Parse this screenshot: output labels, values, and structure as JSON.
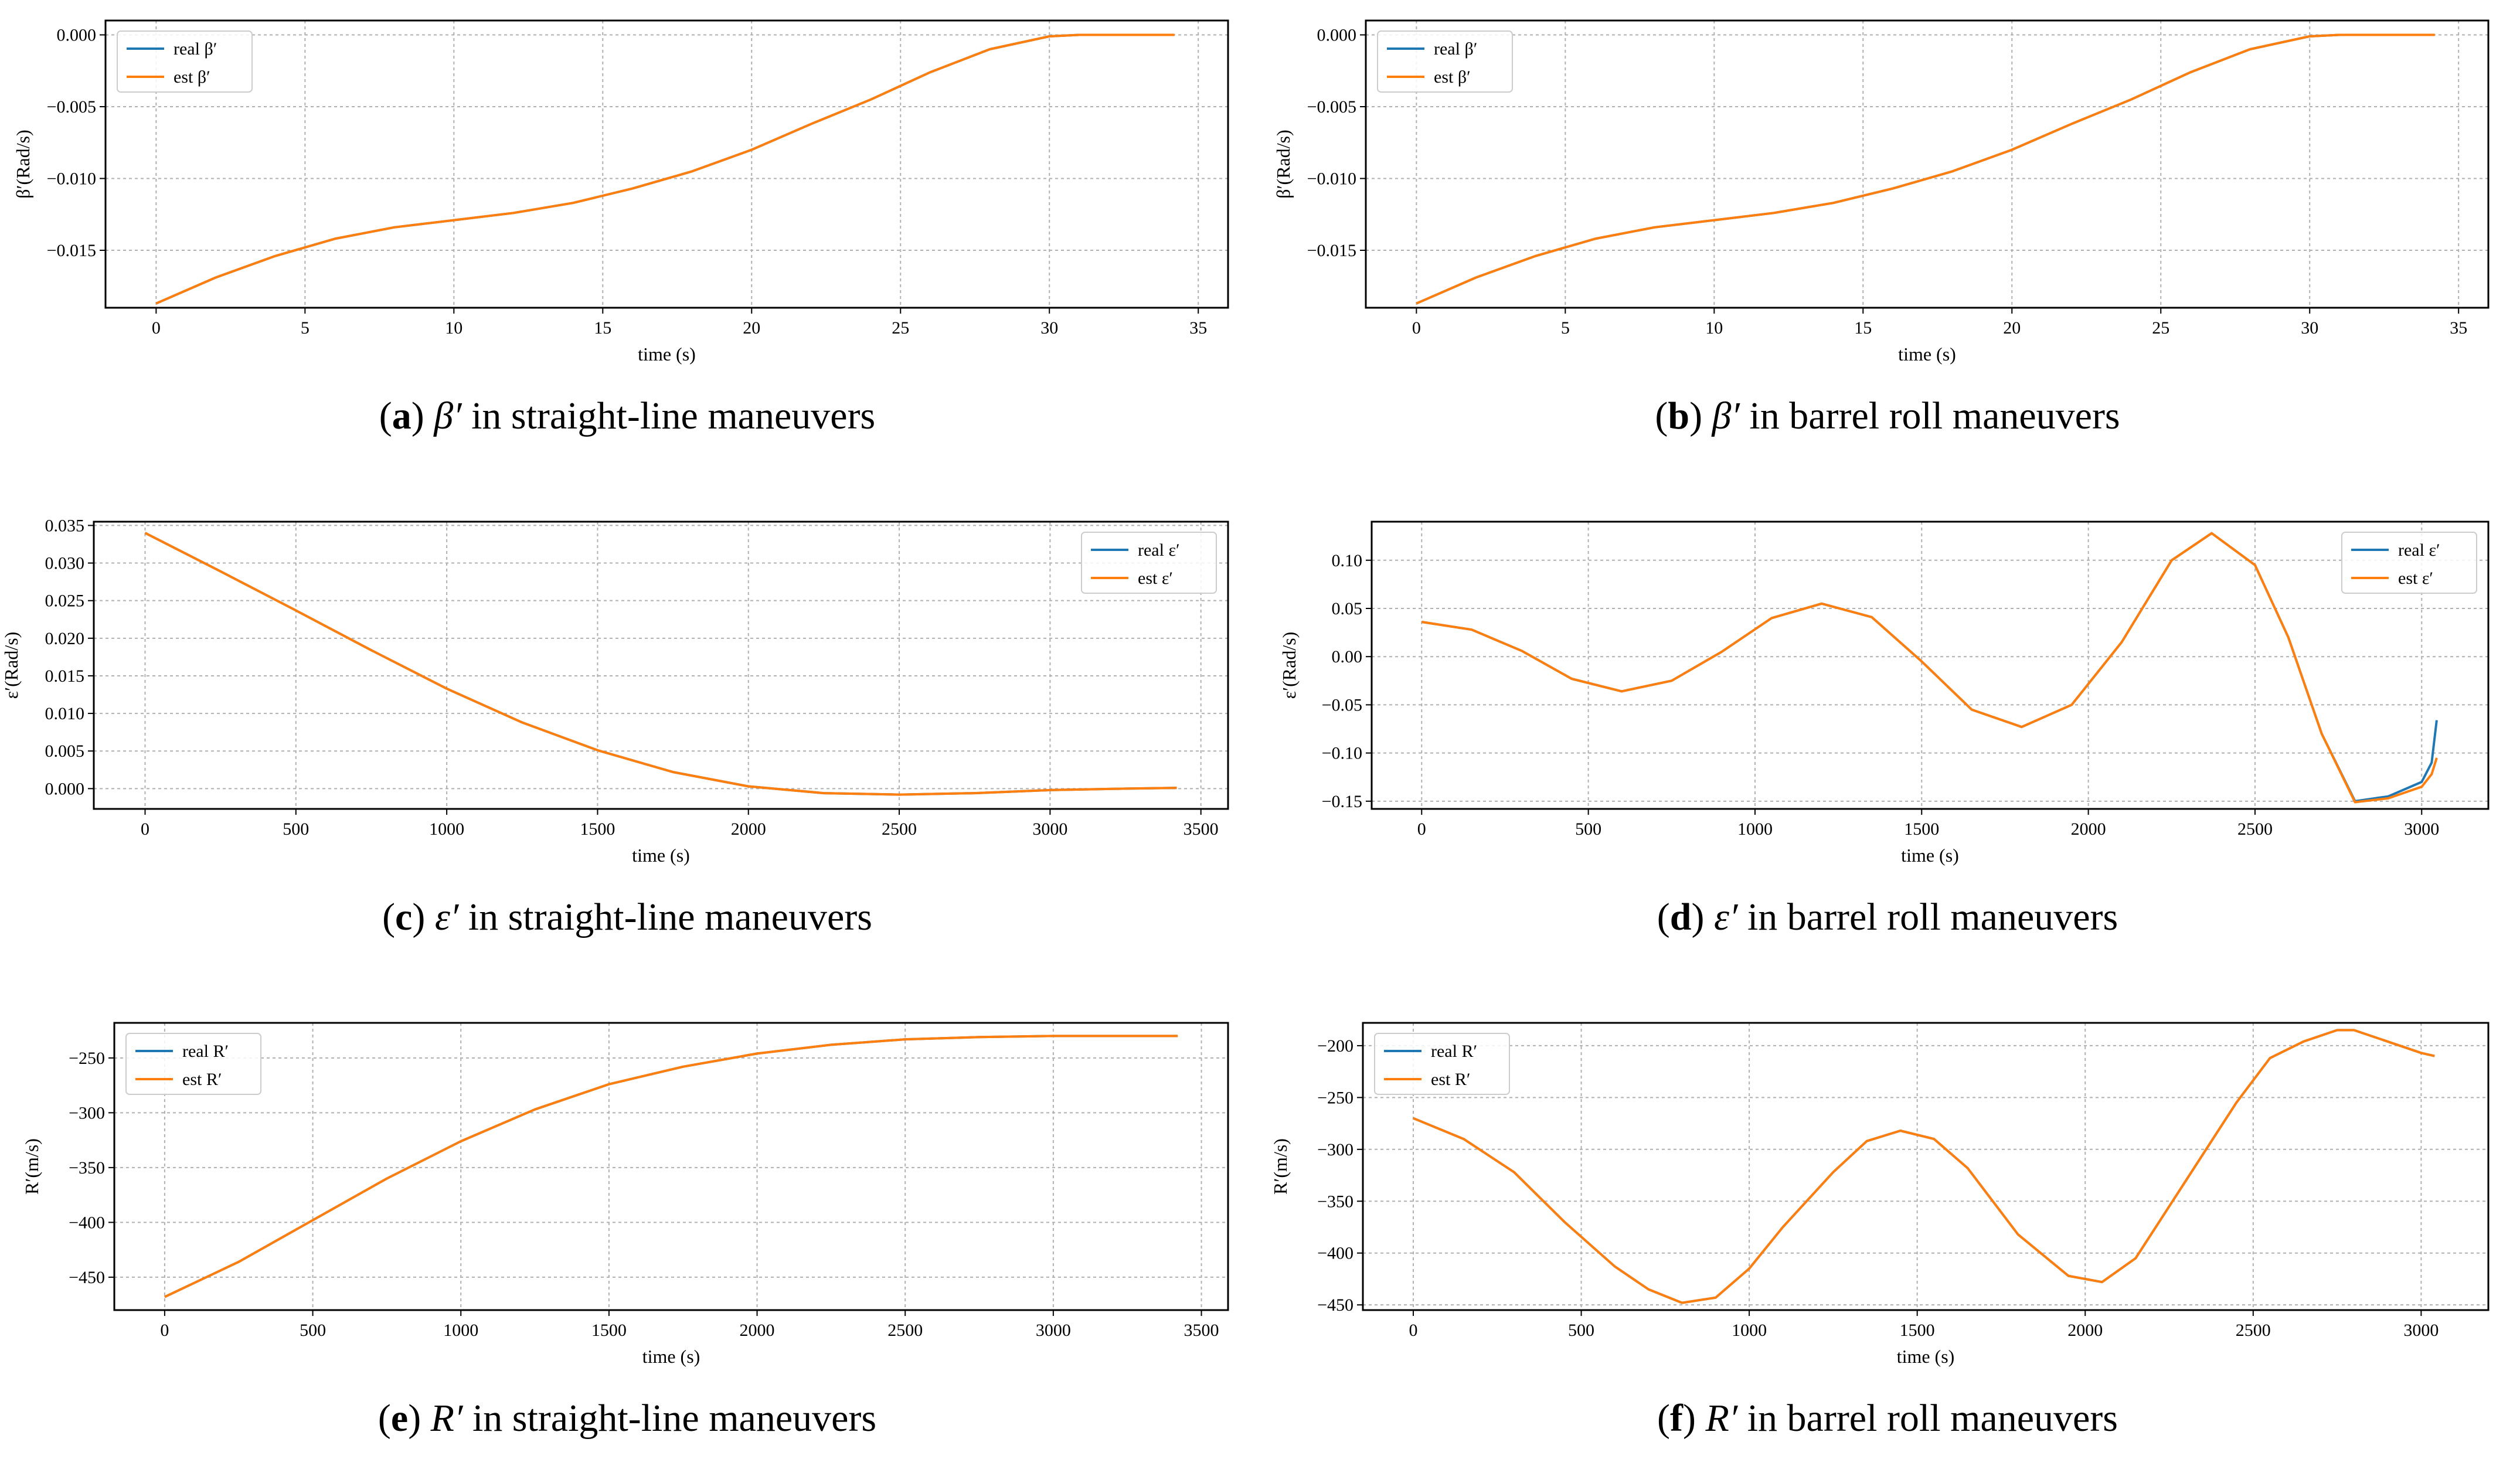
{
  "colors": {
    "real": "#1f77b4",
    "est": "#ff7f0e",
    "grid": "#b0b0b0",
    "axis": "#000000",
    "legend_border": "#cccccc"
  },
  "chart_data": [
    {
      "id": "a",
      "type": "line",
      "caption": {
        "letter": "a",
        "symbol": "β′",
        "text": "in straight-line maneuvers"
      },
      "xlabel": "time (s)",
      "ylabel": "β′(Rad/s)",
      "xlim": [
        -1.7,
        36
      ],
      "ylim": [
        -0.019,
        0.001
      ],
      "xticks": [
        0,
        5,
        10,
        15,
        20,
        25,
        30,
        35
      ],
      "yticks": [
        -0.015,
        -0.01,
        -0.005,
        0.0
      ],
      "ytick_labels": [
        "−0.015",
        "−0.010",
        "−0.005",
        "0.000"
      ],
      "legend": {
        "position": "upper-left",
        "entries": [
          "real β′",
          "est β′"
        ]
      },
      "series": [
        {
          "name": "real β′",
          "color_key": "real",
          "x": [
            0,
            2,
            4,
            6,
            8,
            10,
            12,
            14,
            16,
            18,
            20,
            22,
            24,
            26,
            28,
            30,
            31,
            32,
            34.2
          ],
          "y": [
            -0.0187,
            -0.0169,
            -0.0154,
            -0.0142,
            -0.0134,
            -0.0129,
            -0.0124,
            -0.0117,
            -0.0107,
            -0.0095,
            -0.008,
            -0.0062,
            -0.0045,
            -0.0026,
            -0.001,
            -0.0001,
            0.0,
            0.0,
            0.0
          ]
        },
        {
          "name": "est β′",
          "color_key": "est",
          "x": [
            0,
            2,
            4,
            6,
            8,
            10,
            12,
            14,
            16,
            18,
            20,
            22,
            24,
            26,
            28,
            30,
            31,
            32,
            34.2
          ],
          "y": [
            -0.0187,
            -0.0169,
            -0.0154,
            -0.0142,
            -0.0134,
            -0.0129,
            -0.0124,
            -0.0117,
            -0.0107,
            -0.0095,
            -0.008,
            -0.0062,
            -0.0045,
            -0.0026,
            -0.001,
            -0.0001,
            0.0,
            0.0,
            0.0
          ]
        }
      ]
    },
    {
      "id": "b",
      "type": "line",
      "caption": {
        "letter": "b",
        "symbol": "β′",
        "text": "in barrel roll maneuvers"
      },
      "xlabel": "time (s)",
      "ylabel": "β′(Rad/s)",
      "xlim": [
        -1.7,
        36
      ],
      "ylim": [
        -0.019,
        0.001
      ],
      "xticks": [
        0,
        5,
        10,
        15,
        20,
        25,
        30,
        35
      ],
      "yticks": [
        -0.015,
        -0.01,
        -0.005,
        0.0
      ],
      "ytick_labels": [
        "−0.015",
        "−0.010",
        "−0.005",
        "0.000"
      ],
      "legend": {
        "position": "upper-left",
        "entries": [
          "real β′",
          "est β′"
        ]
      },
      "series": [
        {
          "name": "real β′",
          "color_key": "real",
          "x": [
            0,
            2,
            4,
            6,
            8,
            10,
            12,
            14,
            16,
            18,
            20,
            22,
            24,
            26,
            28,
            30,
            31,
            32,
            34.2
          ],
          "y": [
            -0.0187,
            -0.0169,
            -0.0154,
            -0.0142,
            -0.0134,
            -0.0129,
            -0.0124,
            -0.0117,
            -0.0107,
            -0.0095,
            -0.008,
            -0.0062,
            -0.0045,
            -0.0026,
            -0.001,
            -0.0001,
            0.0,
            0.0,
            0.0
          ]
        },
        {
          "name": "est β′",
          "color_key": "est",
          "x": [
            0,
            2,
            4,
            6,
            8,
            10,
            12,
            14,
            16,
            18,
            20,
            22,
            24,
            26,
            28,
            30,
            31,
            32,
            34.2
          ],
          "y": [
            -0.0187,
            -0.0169,
            -0.0154,
            -0.0142,
            -0.0134,
            -0.0129,
            -0.0124,
            -0.0117,
            -0.0107,
            -0.0095,
            -0.008,
            -0.0062,
            -0.0045,
            -0.0026,
            -0.001,
            -0.0001,
            0.0,
            0.0,
            0.0
          ]
        }
      ]
    },
    {
      "id": "c",
      "type": "line",
      "caption": {
        "letter": "c",
        "symbol": "ε′",
        "text": "in straight-line maneuvers"
      },
      "xlabel": "time (s)",
      "ylabel": "ε′(Rad/s)",
      "xlim": [
        -170,
        3590
      ],
      "ylim": [
        -0.0027,
        0.0355
      ],
      "xticks": [
        0,
        500,
        1000,
        1500,
        2000,
        2500,
        3000,
        3500
      ],
      "yticks": [
        0.0,
        0.005,
        0.01,
        0.015,
        0.02,
        0.025,
        0.03,
        0.035
      ],
      "ytick_labels": [
        "0.000",
        "0.005",
        "0.010",
        "0.015",
        "0.020",
        "0.025",
        "0.030",
        "0.035"
      ],
      "legend": {
        "position": "upper-right",
        "entries": [
          "real ε′",
          "est ε′"
        ]
      },
      "series": [
        {
          "name": "real ε′",
          "color_key": "real",
          "x": [
            0,
            250,
            500,
            750,
            1000,
            1250,
            1500,
            1750,
            2000,
            2250,
            2500,
            2750,
            3000,
            3250,
            3420
          ],
          "y": [
            0.034,
            0.0289,
            0.0237,
            0.0184,
            0.0133,
            0.0088,
            0.0051,
            0.0022,
            0.0003,
            -0.0006,
            -0.0008,
            -0.0006,
            -0.0002,
            0.0,
            0.0001
          ]
        },
        {
          "name": "est ε′",
          "color_key": "est",
          "x": [
            0,
            250,
            500,
            750,
            1000,
            1250,
            1500,
            1750,
            2000,
            2250,
            2500,
            2750,
            3000,
            3250,
            3420
          ],
          "y": [
            0.034,
            0.0289,
            0.0237,
            0.0184,
            0.0133,
            0.0088,
            0.0051,
            0.0022,
            0.0003,
            -0.0006,
            -0.0008,
            -0.0006,
            -0.0002,
            0.0,
            0.0001
          ]
        }
      ]
    },
    {
      "id": "d",
      "type": "line",
      "caption": {
        "letter": "d",
        "symbol": "ε′",
        "text": "in barrel roll maneuvers"
      },
      "xlabel": "time (s)",
      "ylabel": "ε′(Rad/s)",
      "xlim": [
        -150,
        3200
      ],
      "ylim": [
        -0.158,
        0.14
      ],
      "xticks": [
        0,
        500,
        1000,
        1500,
        2000,
        2500,
        3000
      ],
      "yticks": [
        -0.15,
        -0.1,
        -0.05,
        0.0,
        0.05,
        0.1
      ],
      "ytick_labels": [
        "−0.15",
        "−0.10",
        "−0.05",
        "0.00",
        "0.05",
        "0.10"
      ],
      "legend": {
        "position": "upper-right",
        "entries": [
          "real ε′",
          "est ε′"
        ]
      },
      "series": [
        {
          "name": "real ε′",
          "color_key": "real",
          "x": [
            0,
            150,
            300,
            450,
            600,
            750,
            900,
            1050,
            1200,
            1350,
            1500,
            1650,
            1800,
            1950,
            2100,
            2250,
            2370,
            2500,
            2600,
            2700,
            2800,
            2900,
            3000,
            3030,
            3045
          ],
          "y": [
            0.036,
            0.028,
            0.006,
            -0.023,
            -0.036,
            -0.025,
            0.005,
            0.04,
            0.055,
            0.041,
            -0.005,
            -0.055,
            -0.073,
            -0.05,
            0.015,
            0.1,
            0.128,
            0.095,
            0.02,
            -0.08,
            -0.15,
            -0.145,
            -0.13,
            -0.11,
            -0.066
          ]
        },
        {
          "name": "est ε′",
          "color_key": "est",
          "x": [
            0,
            150,
            300,
            450,
            600,
            750,
            900,
            1050,
            1200,
            1350,
            1500,
            1650,
            1800,
            1950,
            2100,
            2250,
            2370,
            2500,
            2600,
            2700,
            2800,
            2900,
            3000,
            3030,
            3045
          ],
          "y": [
            0.036,
            0.028,
            0.006,
            -0.023,
            -0.036,
            -0.025,
            0.005,
            0.04,
            0.055,
            0.041,
            -0.005,
            -0.055,
            -0.073,
            -0.05,
            0.015,
            0.1,
            0.128,
            0.095,
            0.02,
            -0.08,
            -0.151,
            -0.147,
            -0.135,
            -0.122,
            -0.105
          ]
        }
      ]
    },
    {
      "id": "e",
      "type": "line",
      "caption": {
        "letter": "e",
        "symbol": "R′",
        "text": "in straight-line maneuvers"
      },
      "xlabel": "time (s)",
      "ylabel": "R′(m/s)",
      "xlim": [
        -170,
        3590
      ],
      "ylim": [
        -480,
        -218
      ],
      "xticks": [
        0,
        500,
        1000,
        1500,
        2000,
        2500,
        3000,
        3500
      ],
      "yticks": [
        -450,
        -400,
        -350,
        -300,
        -250
      ],
      "ytick_labels": [
        "−450",
        "−400",
        "−350",
        "−300",
        "−250"
      ],
      "legend": {
        "position": "upper-left",
        "entries": [
          "real R′",
          "est R′"
        ]
      },
      "series": [
        {
          "name": "real R′",
          "color_key": "real",
          "x": [
            0,
            250,
            500,
            750,
            1000,
            1250,
            1500,
            1750,
            2000,
            2250,
            2500,
            2750,
            3000,
            3250,
            3420
          ],
          "y": [
            -468,
            -436,
            -398,
            -360,
            -326,
            -297,
            -274,
            -258,
            -246,
            -238,
            -233,
            -231,
            -230,
            -230,
            -230
          ]
        },
        {
          "name": "est R′",
          "color_key": "est",
          "x": [
            0,
            250,
            500,
            750,
            1000,
            1250,
            1500,
            1750,
            2000,
            2250,
            2500,
            2750,
            3000,
            3250,
            3420
          ],
          "y": [
            -468,
            -436,
            -398,
            -360,
            -326,
            -297,
            -274,
            -258,
            -246,
            -238,
            -233,
            -231,
            -230,
            -230,
            -230
          ]
        }
      ]
    },
    {
      "id": "f",
      "type": "line",
      "caption": {
        "letter": "f",
        "symbol": "R′",
        "text": "in barrel roll maneuvers"
      },
      "xlabel": "time (s)",
      "ylabel": "R′(m/s)",
      "xlim": [
        -150,
        3200
      ],
      "ylim": [
        -455,
        -178
      ],
      "xticks": [
        0,
        500,
        1000,
        1500,
        2000,
        2500,
        3000
      ],
      "yticks": [
        -450,
        -400,
        -350,
        -300,
        -250,
        -200
      ],
      "ytick_labels": [
        "−450",
        "−400",
        "−350",
        "−300",
        "−250",
        "−200"
      ],
      "legend": {
        "position": "upper-left",
        "entries": [
          "real R′",
          "est R′"
        ]
      },
      "series": [
        {
          "name": "real R′",
          "color_key": "real",
          "x": [
            0,
            150,
            300,
            450,
            600,
            700,
            800,
            900,
            1000,
            1100,
            1250,
            1350,
            1450,
            1550,
            1650,
            1800,
            1950,
            2050,
            2150,
            2300,
            2450,
            2550,
            2650,
            2750,
            2800,
            2900,
            3000,
            3040
          ],
          "y": [
            -270,
            -290,
            -322,
            -370,
            -413,
            -435,
            -448,
            -443,
            -415,
            -375,
            -322,
            -292,
            -282,
            -290,
            -318,
            -382,
            -422,
            -428,
            -405,
            -330,
            -255,
            -212,
            -196,
            -185,
            -185,
            -196,
            -207,
            -210
          ]
        },
        {
          "name": "est R′",
          "color_key": "est",
          "x": [
            0,
            150,
            300,
            450,
            600,
            700,
            800,
            900,
            1000,
            1100,
            1250,
            1350,
            1450,
            1550,
            1650,
            1800,
            1950,
            2050,
            2150,
            2300,
            2450,
            2550,
            2650,
            2750,
            2800,
            2900,
            3000,
            3040
          ],
          "y": [
            -270,
            -290,
            -322,
            -370,
            -413,
            -435,
            -448,
            -443,
            -415,
            -375,
            -322,
            -292,
            -282,
            -290,
            -318,
            -382,
            -422,
            -428,
            -405,
            -330,
            -255,
            -212,
            -196,
            -185,
            -185,
            -196,
            -207,
            -210
          ]
        }
      ]
    }
  ]
}
